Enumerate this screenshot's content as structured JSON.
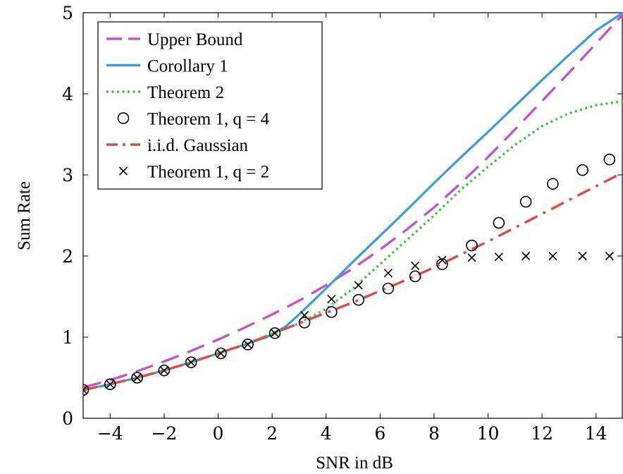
{
  "chart_data": {
    "type": "line",
    "title": "",
    "xlabel": "SNR in dB",
    "ylabel": "Sum Rate",
    "xlim": [
      -5,
      15
    ],
    "ylim": [
      0,
      5
    ],
    "xticks": [
      -4,
      -2,
      0,
      2,
      4,
      6,
      8,
      10,
      12,
      14
    ],
    "xtick_labels": [
      "−4",
      "−2",
      "0",
      "2",
      "4",
      "6",
      "8",
      "10",
      "12",
      "14"
    ],
    "yticks": [
      0,
      1,
      2,
      3,
      4,
      5
    ],
    "ytick_labels": [
      "0",
      "1",
      "2",
      "3",
      "4",
      "5"
    ],
    "grid": false,
    "legend_position": "top-left",
    "series": [
      {
        "name": "Upper Bound",
        "style": "dashed",
        "color": "#c355c8",
        "marker": "none",
        "x": [
          -5,
          -4,
          -3,
          -2,
          -1,
          0,
          1,
          2,
          3,
          4,
          5,
          6,
          7,
          8,
          9,
          10,
          11,
          12,
          13,
          14,
          15
        ],
        "y": [
          0.38,
          0.47,
          0.58,
          0.7,
          0.83,
          0.97,
          1.12,
          1.28,
          1.45,
          1.64,
          1.85,
          2.08,
          2.33,
          2.6,
          2.9,
          3.22,
          3.56,
          3.91,
          4.26,
          4.62,
          4.98
        ]
      },
      {
        "name": "Corollary 1",
        "style": "solid",
        "color": "#3c9ae0",
        "marker": "none",
        "x": [
          -5,
          -4,
          -3,
          -2,
          -1,
          0,
          1,
          1.8,
          2.5,
          3,
          4,
          5,
          6,
          7,
          8,
          9,
          10,
          11,
          12,
          13,
          14,
          15
        ],
        "y": [
          0.35,
          0.42,
          0.5,
          0.59,
          0.69,
          0.8,
          0.91,
          1.0,
          1.13,
          1.28,
          1.6,
          1.93,
          2.25,
          2.57,
          2.9,
          3.22,
          3.53,
          3.85,
          4.17,
          4.48,
          4.78,
          5.0
        ]
      },
      {
        "name": "Theorem 2",
        "style": "dotted",
        "color": "#44c24a",
        "marker": "none",
        "x": [
          -5,
          -4,
          -3,
          -2,
          -1,
          0,
          1,
          2,
          3,
          4,
          5,
          6,
          7,
          8,
          9,
          10,
          11,
          12,
          13,
          14,
          15
        ],
        "y": [
          0.35,
          0.42,
          0.5,
          0.59,
          0.69,
          0.8,
          0.91,
          1.04,
          1.17,
          1.35,
          1.6,
          1.9,
          2.2,
          2.5,
          2.82,
          3.1,
          3.37,
          3.6,
          3.76,
          3.86,
          3.91
        ]
      },
      {
        "name": "Theorem 1, q = 4",
        "style": "markers",
        "color": "#000000",
        "marker": "circle",
        "x": [
          -5,
          -4,
          -3,
          -2,
          -1,
          0.1,
          1.1,
          2.1,
          3.2,
          4.2,
          5.2,
          6.3,
          7.3,
          8.3,
          9.4,
          10.4,
          11.4,
          12.4,
          13.5,
          14.5
        ],
        "y": [
          0.35,
          0.42,
          0.5,
          0.59,
          0.69,
          0.8,
          0.91,
          1.05,
          1.18,
          1.31,
          1.46,
          1.6,
          1.75,
          1.9,
          2.13,
          2.41,
          2.67,
          2.89,
          3.06,
          3.19
        ]
      },
      {
        "name": "i.i.d. Gaussian",
        "style": "dashdot",
        "color": "#de4a4a",
        "marker": "none",
        "x": [
          -5,
          -4,
          -3,
          -2,
          -1,
          0,
          1,
          2,
          3,
          4,
          5,
          6,
          7,
          8,
          9,
          10,
          11,
          12,
          13,
          14,
          15
        ],
        "y": [
          0.35,
          0.42,
          0.5,
          0.59,
          0.69,
          0.8,
          0.91,
          1.04,
          1.17,
          1.3,
          1.43,
          1.57,
          1.71,
          1.86,
          2.02,
          2.18,
          2.35,
          2.52,
          2.69,
          2.86,
          3.03
        ]
      },
      {
        "name": "Theorem 1, q = 2",
        "style": "markers",
        "color": "#000000",
        "marker": "cross",
        "x": [
          -5,
          -4,
          -3,
          -2,
          -1,
          0.1,
          1.1,
          2.1,
          3.2,
          4.2,
          5.2,
          6.3,
          7.3,
          8.3,
          9.4,
          10.4,
          11.4,
          12.4,
          13.5,
          14.5
        ],
        "y": [
          0.35,
          0.42,
          0.5,
          0.59,
          0.69,
          0.8,
          0.91,
          1.05,
          1.27,
          1.47,
          1.64,
          1.79,
          1.88,
          1.95,
          1.98,
          1.99,
          2.0,
          2.0,
          2.0,
          2.0
        ]
      }
    ]
  },
  "legend": {
    "entries": [
      "Upper Bound",
      "Corollary 1",
      "Theorem 2",
      "Theorem 1, q = 4",
      "i.i.d. Gaussian",
      "Theorem 1, q = 2"
    ]
  }
}
